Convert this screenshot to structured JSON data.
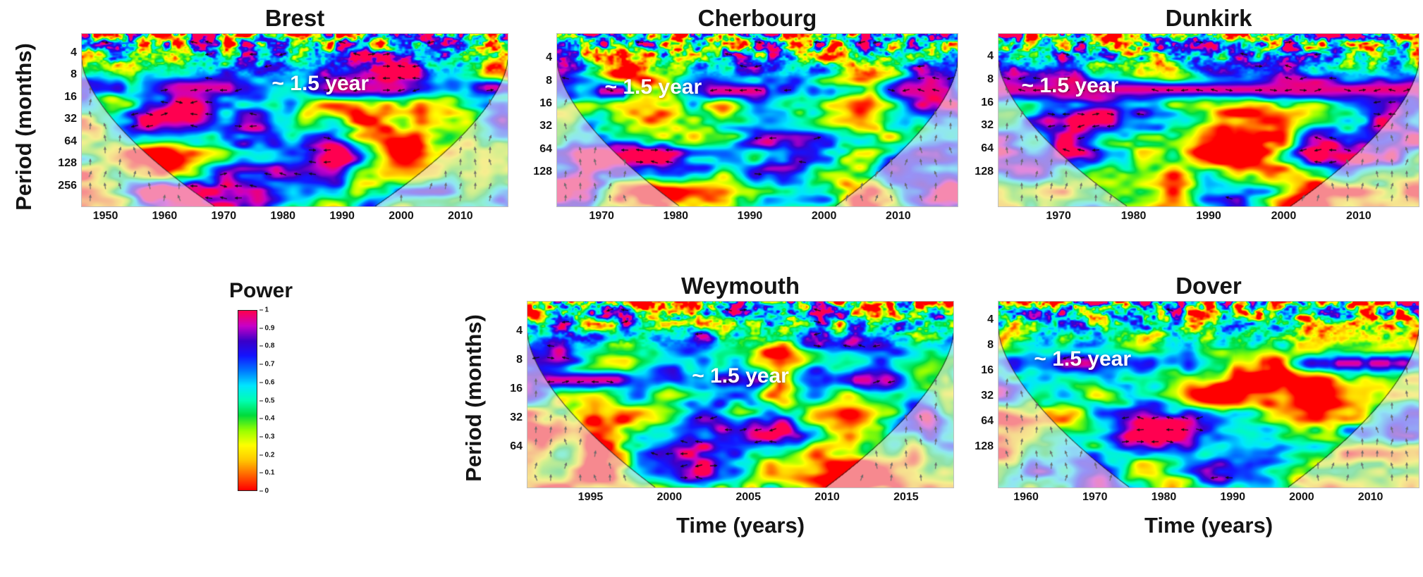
{
  "figure": {
    "y_axis_label": "Period (months)",
    "x_axis_label": "Time (years)",
    "colorbar": {
      "title": "Power",
      "tick_labels": [
        "1",
        "0.9",
        "0.8",
        "0.7",
        "0.6",
        "0.5",
        "0.4",
        "0.3",
        "0.2",
        "0.1",
        "0"
      ],
      "value_range": [
        0,
        1
      ],
      "gradient_stops_bottom_to_top": [
        "#ff0000",
        "#ff6400",
        "#ffc800",
        "#ffff00",
        "#96ff00",
        "#00dc3c",
        "#00ffb4",
        "#00e6ff",
        "#0078ff",
        "#1414ff",
        "#3c00c8",
        "#c800c8",
        "#ff0050"
      ]
    }
  },
  "chart_data": [
    {
      "type": "heatmap",
      "id": "brest",
      "title": "Brest",
      "annotation": "~ 1.5 year",
      "annotated_band_period_months": 18,
      "x_ticks": [
        1950,
        1960,
        1970,
        1980,
        1990,
        2000,
        2010
      ],
      "x_range": [
        1946,
        2018
      ],
      "y_ticks": [
        4,
        8,
        16,
        32,
        64,
        128,
        256
      ],
      "y_scale": "log2",
      "power_range": [
        0,
        1
      ],
      "overlays": [
        "cone-of-influence",
        "phase-arrows"
      ]
    },
    {
      "type": "heatmap",
      "id": "cherbourg",
      "title": "Cherbourg",
      "annotation": "~ 1.5 year",
      "annotated_band_period_months": 18,
      "x_ticks": [
        1970,
        1980,
        1990,
        2000,
        2010
      ],
      "x_range": [
        1964,
        2018
      ],
      "y_ticks": [
        4,
        8,
        16,
        32,
        64,
        128
      ],
      "y_scale": "log2",
      "power_range": [
        0,
        1
      ],
      "overlays": [
        "cone-of-influence",
        "phase-arrows"
      ]
    },
    {
      "type": "heatmap",
      "id": "dunkirk",
      "title": "Dunkirk",
      "annotation": "~ 1.5 year",
      "annotated_band_period_months": 18,
      "x_ticks": [
        1970,
        1980,
        1990,
        2000,
        2010
      ],
      "x_range": [
        1962,
        2018
      ],
      "y_ticks": [
        4,
        8,
        16,
        32,
        64,
        128
      ],
      "y_scale": "log2",
      "power_range": [
        0,
        1
      ],
      "overlays": [
        "cone-of-influence",
        "phase-arrows"
      ]
    },
    {
      "type": "heatmap",
      "id": "weymouth",
      "title": "Weymouth",
      "annotation": "~ 1.5 year",
      "annotated_band_period_months": 18,
      "x_ticks": [
        1995,
        2000,
        2005,
        2010,
        2015
      ],
      "x_range": [
        1991,
        2018
      ],
      "y_ticks": [
        4,
        8,
        16,
        32,
        64
      ],
      "y_scale": "log2",
      "power_range": [
        0,
        1
      ],
      "overlays": [
        "cone-of-influence",
        "phase-arrows"
      ]
    },
    {
      "type": "heatmap",
      "id": "dover",
      "title": "Dover",
      "annotation": "~ 1.5 year",
      "annotated_band_period_months": 18,
      "x_ticks": [
        1960,
        1970,
        1980,
        1990,
        2000,
        2010
      ],
      "x_range": [
        1956,
        2017
      ],
      "y_ticks": [
        4,
        8,
        16,
        32,
        64,
        128
      ],
      "y_scale": "log2",
      "power_range": [
        0,
        1
      ],
      "overlays": [
        "cone-of-influence",
        "phase-arrows"
      ]
    }
  ]
}
